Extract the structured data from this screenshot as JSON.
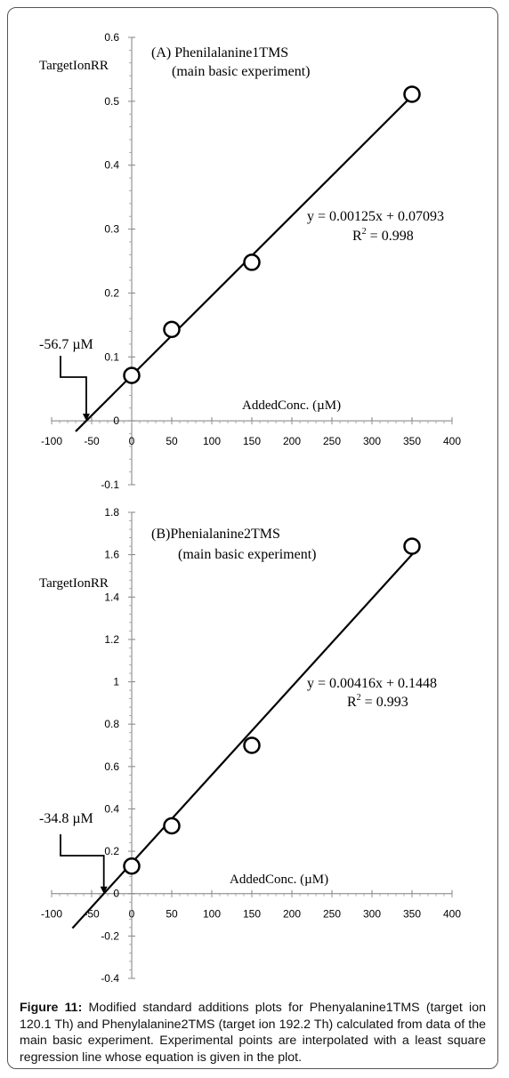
{
  "figure": {
    "caption_label": "Figure 11:",
    "caption_text": " Modified standard additions plots for Phenyalanine1TMS (target ion 120.1 Th) and Phenylalanine2TMS (target ion 192.2 Th) calculated from data of the main basic experiment. Experimental points are interpolated with a least square regression line whose equation is given in the plot."
  },
  "chart_data": [
    {
      "type": "scatter",
      "title": "(A) Phenilalanine1TMS",
      "subtitle": "(main basic experiment)",
      "xlabel": "AddedConc. (µM)",
      "ylabel": "TargetIonRR",
      "xlim": [
        -100,
        400
      ],
      "ylim": [
        -0.1,
        0.6
      ],
      "xticks": [
        -100,
        -50,
        0,
        50,
        100,
        150,
        200,
        250,
        300,
        350,
        400
      ],
      "yticks": [
        -0.1,
        0,
        0.1,
        0.2,
        0.3,
        0.4,
        0.5,
        0.6
      ],
      "ytick_labels": [
        "-0.1",
        "0",
        "0.1",
        "0.2",
        "0.3",
        "0.4",
        "0.5",
        "0.6"
      ],
      "series": [
        {
          "x": [
            0,
            50,
            150,
            350
          ],
          "y": [
            0.071,
            0.143,
            0.248,
            0.511
          ]
        }
      ],
      "fit": {
        "slope": 0.00125,
        "intercept": 0.07093,
        "x_range": [
          -70,
          355
        ]
      },
      "equation": "y = 0.00125x + 0.07093",
      "r2_label": "R",
      "r2_value": " = 0.998",
      "x_intercept_label": "-56.7 µM",
      "x_intercept": -56.7,
      "grid": false
    },
    {
      "type": "scatter",
      "title": "(B)Phenialanine2TMS",
      "subtitle": "(main basic experiment)",
      "xlabel": "AddedConc. (µM)",
      "ylabel": "TargetIonRR",
      "xlim": [
        -100,
        400
      ],
      "ylim": [
        -0.4,
        1.8
      ],
      "xticks": [
        -100,
        -50,
        0,
        50,
        100,
        150,
        200,
        250,
        300,
        350,
        400
      ],
      "yticks": [
        -0.4,
        -0.2,
        0,
        0.2,
        0.4,
        0.6,
        0.8,
        1,
        1.2,
        1.4,
        1.6,
        1.8
      ],
      "ytick_labels": [
        "-0.4",
        "-0.2",
        "0",
        "0.2",
        "0.4",
        "0.6",
        "0.8",
        "1",
        "1.2",
        "1.4",
        "1.6",
        "1.8"
      ],
      "series": [
        {
          "x": [
            0,
            50,
            150,
            350
          ],
          "y": [
            0.13,
            0.32,
            0.7,
            1.64
          ]
        }
      ],
      "fit": {
        "slope": 0.00416,
        "intercept": 0.1448,
        "x_range": [
          -74,
          353
        ]
      },
      "equation": "y = 0.00416x + 0.1448",
      "r2_label": "R",
      "r2_value": " = 0.993",
      "x_intercept_label": "-34.8 µM",
      "x_intercept": -34.8,
      "grid": false
    }
  ]
}
